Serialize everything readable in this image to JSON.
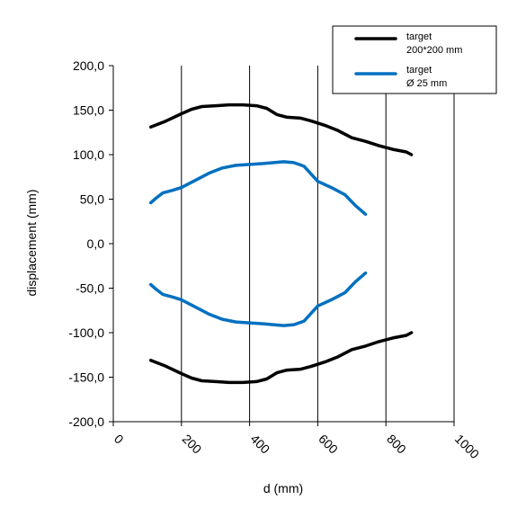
{
  "chart_data": {
    "type": "line",
    "title": "",
    "xlabel": "d (mm)",
    "ylabel": "displacement (mm)",
    "xlim": [
      0,
      1000
    ],
    "ylim": [
      -200,
      200
    ],
    "x_ticks": [
      0,
      200,
      400,
      600,
      800,
      1000
    ],
    "x_tick_labels": [
      "0",
      "200",
      "400",
      "600",
      "800",
      "1000"
    ],
    "y_ticks": [
      200,
      150,
      100,
      50,
      0,
      -50,
      -100,
      -150,
      -200
    ],
    "y_tick_labels": [
      "200,0",
      "150,0",
      "100,0",
      "50,0",
      "0,0",
      "-50,0",
      "-100,0",
      "-150,0",
      "-200,0"
    ],
    "grid": "vertical",
    "legend_position": "top-right",
    "legend": [
      {
        "label_line1": "target",
        "label_line2": "200*200 mm",
        "color": "#000000"
      },
      {
        "label_line1": "target",
        "label_line2": "Ø 25 mm",
        "color": "#0070c0"
      }
    ],
    "series": [
      {
        "legend_index": 0,
        "color": "#000000",
        "x": [
          110,
          150,
          200,
          230,
          260,
          300,
          340,
          380,
          420,
          450,
          480,
          510,
          550,
          580,
          620,
          660,
          700,
          740,
          780,
          820,
          860,
          875
        ],
        "y": [
          131,
          137,
          146,
          151,
          154,
          155,
          156,
          156,
          155,
          152,
          145,
          142,
          141,
          138,
          133,
          127,
          119,
          115,
          110,
          106,
          103,
          100
        ]
      },
      {
        "legend_index": 0,
        "color": "#000000",
        "x": [
          110,
          150,
          200,
          230,
          260,
          300,
          340,
          380,
          420,
          450,
          480,
          510,
          550,
          580,
          620,
          660,
          700,
          740,
          780,
          820,
          860,
          875
        ],
        "y": [
          -131,
          -137,
          -146,
          -151,
          -154,
          -155,
          -156,
          -156,
          -155,
          -152,
          -145,
          -142,
          -141,
          -138,
          -133,
          -127,
          -119,
          -115,
          -110,
          -106,
          -103,
          -100
        ]
      },
      {
        "legend_index": 1,
        "color": "#0070c0",
        "x": [
          110,
          125,
          145,
          175,
          200,
          240,
          280,
          320,
          360,
          400,
          440,
          470,
          500,
          530,
          560,
          600,
          640,
          680,
          710,
          740
        ],
        "y": [
          46,
          51,
          57,
          60,
          63,
          71,
          79,
          85,
          88,
          89,
          90,
          91,
          92,
          91,
          87,
          70,
          63,
          55,
          43,
          33
        ]
      },
      {
        "legend_index": 1,
        "color": "#0070c0",
        "x": [
          110,
          125,
          145,
          175,
          200,
          240,
          280,
          320,
          360,
          400,
          440,
          470,
          500,
          530,
          560,
          600,
          640,
          680,
          710,
          740
        ],
        "y": [
          -46,
          -51,
          -57,
          -60,
          -63,
          -71,
          -79,
          -85,
          -88,
          -89,
          -90,
          -91,
          -92,
          -91,
          -87,
          -70,
          -63,
          -55,
          -43,
          -33
        ]
      }
    ]
  }
}
